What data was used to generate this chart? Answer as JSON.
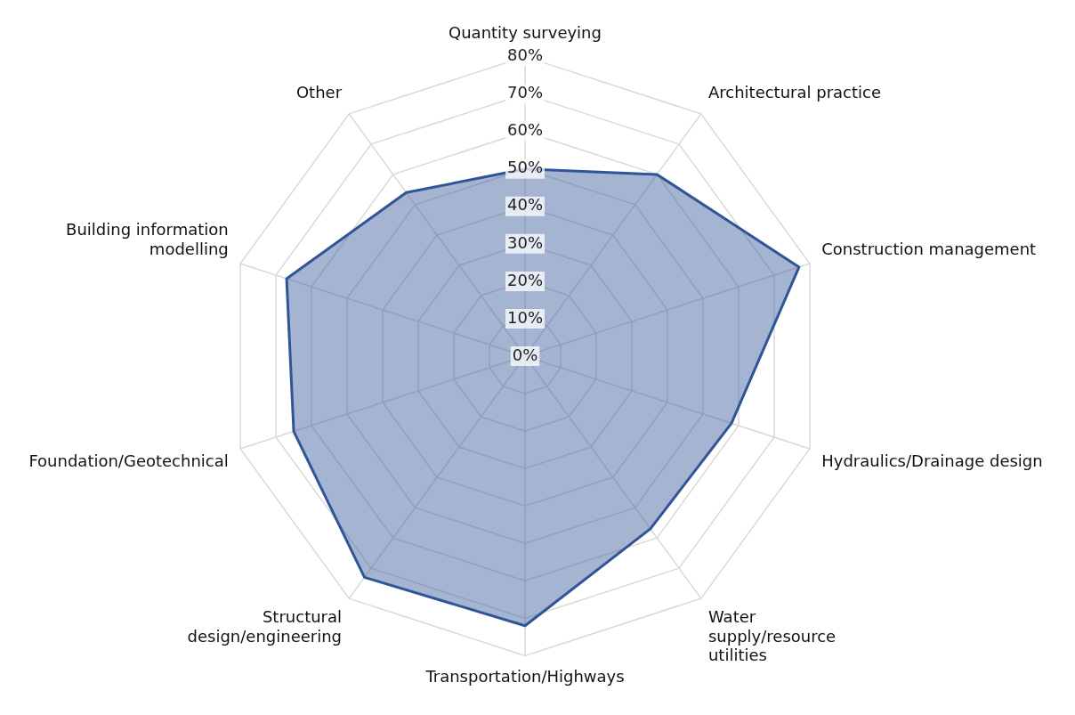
{
  "chart_data": {
    "type": "radar",
    "categories": [
      "Quantity surveying",
      "Architectural practice",
      "Construction management",
      "Hydraulics/Drainage design",
      "Water supply/resource utilities",
      "Transportation/Highways",
      "Structural design/engineering",
      "Foundation/Geotechnical",
      "Building information modelling",
      "Other"
    ],
    "series": [
      {
        "color": "#2f5597",
        "values": [
          50,
          60,
          77,
          58,
          57,
          72,
          73,
          65,
          67,
          54
        ]
      }
    ],
    "ylim": [
      0,
      80
    ],
    "yticks": [
      {
        "value": 0,
        "label": "0%"
      },
      {
        "value": 10,
        "label": "10%"
      },
      {
        "value": 20,
        "label": "20%"
      },
      {
        "value": 30,
        "label": "30%"
      },
      {
        "value": 40,
        "label": "40%"
      },
      {
        "value": 50,
        "label": "50%"
      },
      {
        "value": 60,
        "label": "60%"
      },
      {
        "value": 70,
        "label": "70%"
      },
      {
        "value": 80,
        "label": "80%"
      }
    ],
    "grid": true,
    "legend": false,
    "marker": "none"
  }
}
